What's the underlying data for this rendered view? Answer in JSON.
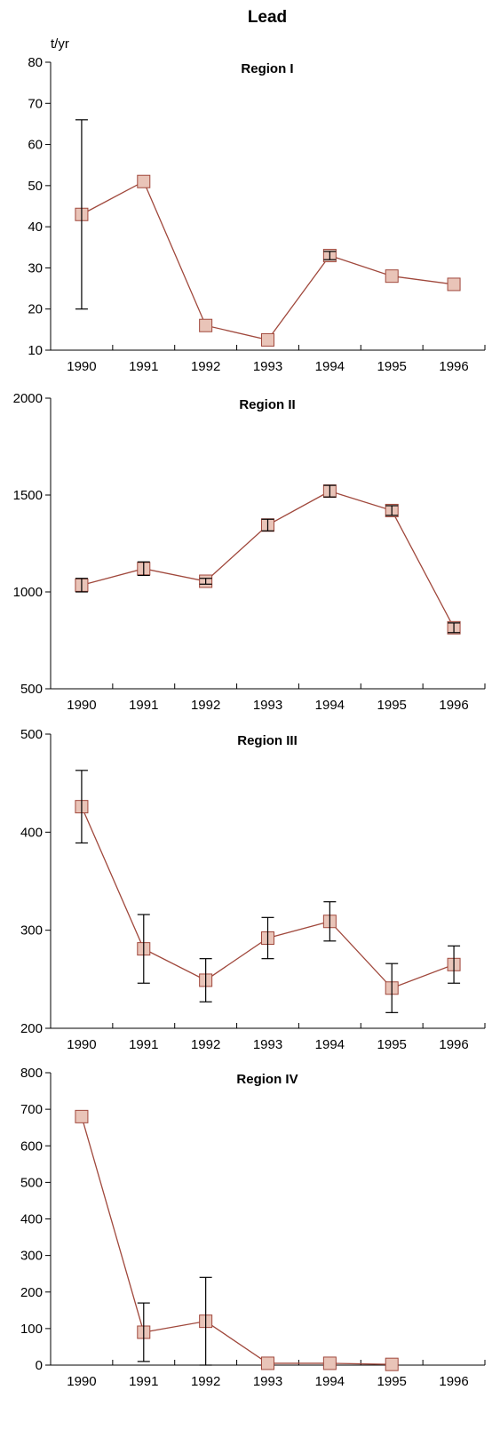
{
  "title": "Lead",
  "unit": "t/yr",
  "colors": {
    "line": "#a0483c",
    "marker_fill": "#e9c4b8",
    "marker_stroke": "#a0483c",
    "error_bar": "#000000"
  },
  "chart_data": [
    {
      "type": "line",
      "title": "Region I",
      "ylabel": "t/yr",
      "categories": [
        "1990",
        "1991",
        "1992",
        "1993",
        "1994",
        "1995",
        "1996"
      ],
      "ylim": [
        10,
        80
      ],
      "yticks": [
        10,
        20,
        30,
        40,
        50,
        60,
        70,
        80
      ],
      "series": [
        {
          "values": [
            43,
            51,
            16,
            12.5,
            33,
            28,
            26
          ],
          "error_low": [
            20,
            null,
            null,
            null,
            32,
            null,
            null
          ],
          "error_high": [
            66,
            null,
            null,
            null,
            34,
            null,
            null
          ]
        }
      ]
    },
    {
      "type": "line",
      "title": "Region II",
      "categories": [
        "1990",
        "1991",
        "1992",
        "1993",
        "1994",
        "1995",
        "1996"
      ],
      "ylim": [
        500,
        2000
      ],
      "yticks": [
        500,
        1000,
        1500,
        2000
      ],
      "series": [
        {
          "values": [
            1035,
            1120,
            1055,
            1345,
            1520,
            1420,
            815
          ],
          "error_low": [
            1000,
            1085,
            1040,
            1315,
            1490,
            1395,
            790
          ],
          "error_high": [
            1070,
            1155,
            1070,
            1375,
            1550,
            1445,
            840
          ]
        }
      ]
    },
    {
      "type": "line",
      "title": "Region III",
      "categories": [
        "1990",
        "1991",
        "1992",
        "1993",
        "1994",
        "1995",
        "1996"
      ],
      "ylim": [
        200,
        500
      ],
      "yticks": [
        200,
        300,
        400,
        500
      ],
      "series": [
        {
          "values": [
            426,
            281,
            249,
            292,
            309,
            241,
            265
          ],
          "error_low": [
            389,
            246,
            227,
            271,
            289,
            216,
            246
          ],
          "error_high": [
            463,
            316,
            271,
            313,
            329,
            266,
            284
          ]
        }
      ]
    },
    {
      "type": "line",
      "title": "Region IV",
      "categories": [
        "1990",
        "1991",
        "1992",
        "1993",
        "1994",
        "1995",
        "1996"
      ],
      "ylim": [
        0,
        800
      ],
      "yticks": [
        0,
        100,
        200,
        300,
        400,
        500,
        600,
        700,
        800
      ],
      "series": [
        {
          "values": [
            680,
            90,
            120,
            5,
            5,
            2,
            null
          ],
          "error_low": [
            null,
            10,
            0,
            null,
            null,
            null,
            null
          ],
          "error_high": [
            null,
            170,
            240,
            null,
            null,
            null,
            null
          ]
        }
      ]
    }
  ]
}
